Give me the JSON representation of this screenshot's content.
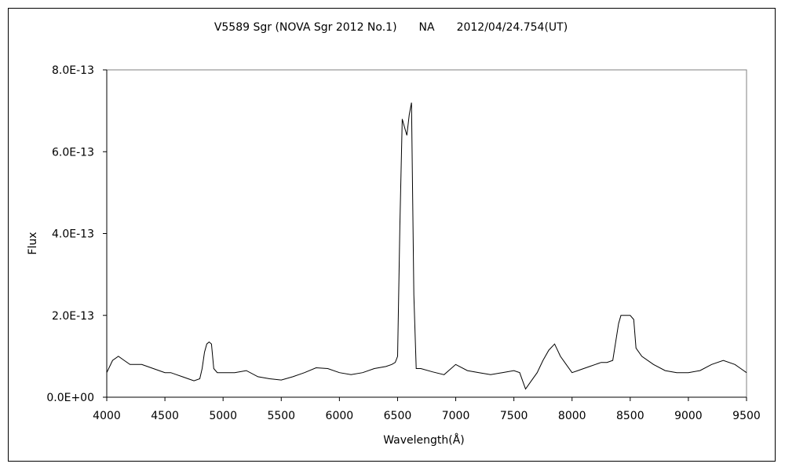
{
  "chart_data": {
    "type": "line",
    "title": "V5589 Sgr (NOVA Sgr 2012 No.1)　　NA　　2012/04/24.754(UT)",
    "xlabel": "Wavelength(Å)",
    "ylabel": "Flux",
    "xlim": [
      4000,
      9500
    ],
    "ylim": [
      0,
      8e-13
    ],
    "x_ticks": [
      "4000",
      "4500",
      "5000",
      "5500",
      "6000",
      "6500",
      "7000",
      "7500",
      "8000",
      "8500",
      "9000",
      "9500"
    ],
    "y_ticks": [
      "0.0E+00",
      "2.0E-13",
      "4.0E-13",
      "6.0E-13",
      "8.0E-13"
    ],
    "grid": false,
    "legend": "none",
    "line_color": "#000000",
    "series": [
      {
        "x": [
          4000,
          4050,
          4100,
          4150,
          4200,
          4250,
          4300,
          4350,
          4400,
          4450,
          4500,
          4550,
          4600,
          4650,
          4700,
          4750,
          4800,
          4820,
          4840,
          4860,
          4880,
          4900,
          4920,
          4950,
          5000,
          5100,
          5200,
          5300,
          5400,
          5500,
          5600,
          5700,
          5800,
          5900,
          6000,
          6100,
          6200,
          6300,
          6400,
          6450,
          6480,
          6500,
          6520,
          6540,
          6560,
          6580,
          6600,
          6620,
          6640,
          6660,
          6700,
          6800,
          6900,
          7000,
          7100,
          7200,
          7300,
          7400,
          7500,
          7550,
          7600,
          7650,
          7700,
          7750,
          7800,
          7850,
          7900,
          7950,
          8000,
          8050,
          8100,
          8150,
          8200,
          8250,
          8300,
          8350,
          8400,
          8420,
          8450,
          8500,
          8530,
          8550,
          8600,
          8700,
          8800,
          8900,
          9000,
          9100,
          9200,
          9300,
          9400,
          9450,
          9500
        ],
        "y": [
          6e-14,
          9e-14,
          1e-13,
          9e-14,
          8e-14,
          8e-14,
          8e-14,
          7.5e-14,
          7e-14,
          6.5e-14,
          6e-14,
          6e-14,
          5.5e-14,
          5e-14,
          4.5e-14,
          4e-14,
          4.5e-14,
          7e-14,
          1.1e-13,
          1.3e-13,
          1.35e-13,
          1.3e-13,
          7e-14,
          6e-14,
          6e-14,
          6e-14,
          6.5e-14,
          5e-14,
          4.5e-14,
          4.2e-14,
          5e-14,
          6e-14,
          7.2e-14,
          7e-14,
          6e-14,
          5.5e-14,
          6e-14,
          7e-14,
          7.5e-14,
          8e-14,
          8.5e-14,
          1e-13,
          4.2e-13,
          6.8e-13,
          6.6e-13,
          6.4e-13,
          6.9e-13,
          7.2e-13,
          2.5e-13,
          7e-14,
          7e-14,
          6.2e-14,
          5.5e-14,
          8e-14,
          6.5e-14,
          6e-14,
          5.5e-14,
          6e-14,
          6.5e-14,
          6e-14,
          2e-14,
          4e-14,
          6e-14,
          9e-14,
          1.15e-13,
          1.3e-13,
          1e-13,
          8e-14,
          6e-14,
          6.5e-14,
          7e-14,
          7.5e-14,
          8e-14,
          8.5e-14,
          8.5e-14,
          9e-14,
          1.8e-13,
          2e-13,
          2e-13,
          2e-13,
          1.9e-13,
          1.2e-13,
          1e-13,
          8e-14,
          6.5e-14,
          6e-14,
          6e-14,
          6.5e-14,
          8e-14,
          9e-14,
          8e-14,
          7e-14,
          6e-14
        ]
      }
    ]
  }
}
